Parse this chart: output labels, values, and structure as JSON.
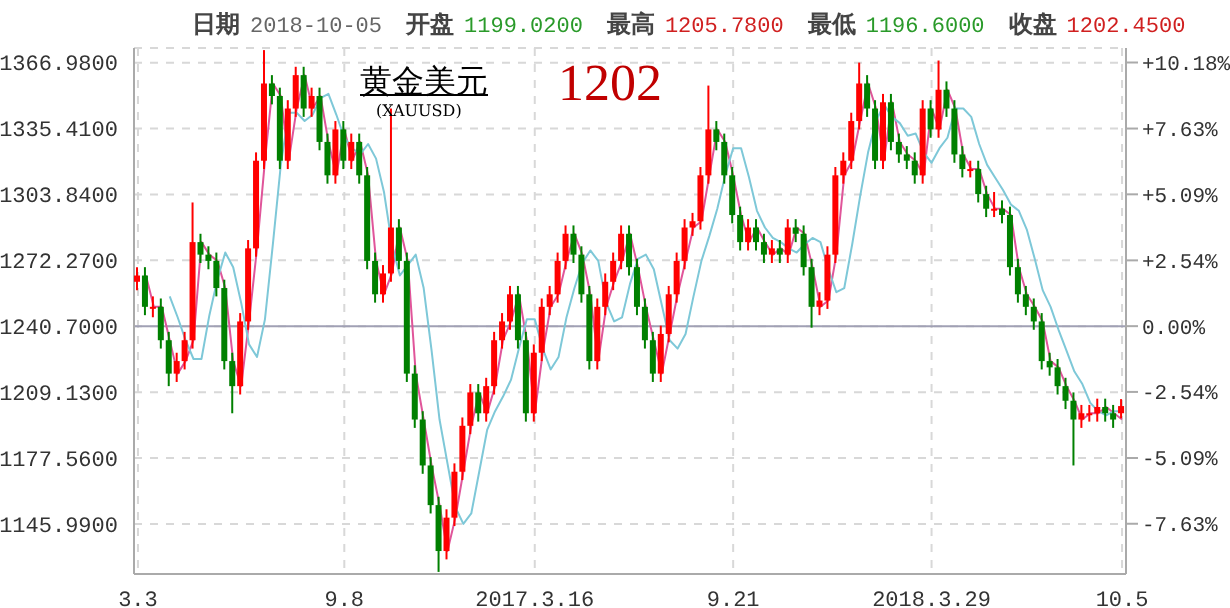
{
  "chart_data": {
    "type": "candlestick",
    "title": "日期 2018-10-05 开盘 1199.0200 最高 1205.7800 最低 1196.6000 收盘 1202.4500",
    "annotations": [
      "黄金美元",
      "(XAUUSD)",
      "1202"
    ],
    "categories": [
      "3.3",
      null,
      null,
      null,
      null,
      null,
      null,
      null,
      null,
      null,
      null,
      null,
      null,
      null,
      null,
      null,
      null,
      null,
      null,
      null,
      null,
      null,
      null,
      null,
      null,
      null,
      "9.8",
      null,
      null,
      null,
      null,
      null,
      null,
      null,
      null,
      null,
      null,
      null,
      null,
      null,
      null,
      null,
      null,
      null,
      null,
      null,
      null,
      null,
      null,
      null,
      "2017.3.16",
      null,
      null,
      null,
      null,
      null,
      null,
      null,
      null,
      null,
      null,
      null,
      null,
      null,
      null,
      null,
      null,
      null,
      null,
      null,
      null,
      null,
      null,
      null,
      null,
      "9.21",
      null,
      null,
      null,
      null,
      null,
      null,
      null,
      null,
      null,
      null,
      null,
      null,
      null,
      null,
      null,
      null,
      null,
      null,
      null,
      null,
      null,
      null,
      null,
      null,
      "2018.3.29",
      null,
      null,
      null,
      null,
      null,
      null,
      null,
      null,
      null,
      null,
      null,
      null,
      null,
      null,
      null,
      null,
      null,
      null,
      null,
      null,
      null,
      null,
      null,
      "10.5"
    ],
    "ohlc": [
      [
        1262,
        1269,
        1258,
        1265
      ],
      [
        1265,
        1269,
        1246,
        1250
      ],
      [
        1250,
        1255,
        1245,
        1250
      ],
      [
        1250,
        1254,
        1230,
        1234
      ],
      [
        1234,
        1238,
        1212,
        1218
      ],
      [
        1218,
        1228,
        1214,
        1224
      ],
      [
        1224,
        1238,
        1220,
        1234
      ],
      [
        1234,
        1300,
        1230,
        1281
      ],
      [
        1281,
        1285,
        1271,
        1275
      ],
      [
        1275,
        1279,
        1268,
        1272
      ],
      [
        1272,
        1276,
        1255,
        1259
      ],
      [
        1259,
        1263,
        1220,
        1224
      ],
      [
        1224,
        1228,
        1199,
        1212
      ],
      [
        1212,
        1247,
        1208,
        1243
      ],
      [
        1243,
        1282,
        1239,
        1278
      ],
      [
        1278,
        1324,
        1274,
        1320
      ],
      [
        1320,
        1373,
        1316,
        1357
      ],
      [
        1357,
        1361,
        1347,
        1351
      ],
      [
        1351,
        1355,
        1316,
        1320
      ],
      [
        1320,
        1349,
        1316,
        1345
      ],
      [
        1345,
        1365,
        1341,
        1361
      ],
      [
        1361,
        1365,
        1341,
        1345
      ],
      [
        1345,
        1355,
        1341,
        1351
      ],
      [
        1351,
        1355,
        1325,
        1329
      ],
      [
        1329,
        1333,
        1309,
        1313
      ],
      [
        1313,
        1339,
        1309,
        1335
      ],
      [
        1335,
        1339,
        1316,
        1320
      ],
      [
        1320,
        1333,
        1316,
        1329
      ],
      [
        1329,
        1333,
        1309,
        1313
      ],
      [
        1313,
        1317,
        1268,
        1272
      ],
      [
        1272,
        1276,
        1252,
        1256
      ],
      [
        1256,
        1270,
        1252,
        1266
      ],
      [
        1266,
        1345,
        1262,
        1288
      ],
      [
        1288,
        1292,
        1268,
        1272
      ],
      [
        1272,
        1276,
        1214,
        1218
      ],
      [
        1218,
        1222,
        1192,
        1196
      ],
      [
        1196,
        1200,
        1170,
        1174
      ],
      [
        1174,
        1178,
        1151,
        1155
      ],
      [
        1155,
        1159,
        1123,
        1133
      ],
      [
        1133,
        1153,
        1129,
        1149
      ],
      [
        1149,
        1175,
        1145,
        1171
      ],
      [
        1171,
        1197,
        1167,
        1193
      ],
      [
        1193,
        1213,
        1189,
        1209
      ],
      [
        1209,
        1213,
        1195,
        1199
      ],
      [
        1199,
        1216,
        1195,
        1212
      ],
      [
        1212,
        1238,
        1208,
        1234
      ],
      [
        1234,
        1247,
        1230,
        1243
      ],
      [
        1243,
        1260,
        1239,
        1256
      ],
      [
        1256,
        1260,
        1230,
        1234
      ],
      [
        1234,
        1238,
        1195,
        1199
      ],
      [
        1199,
        1232,
        1195,
        1228
      ],
      [
        1228,
        1254,
        1224,
        1250
      ],
      [
        1250,
        1260,
        1246,
        1256
      ],
      [
        1256,
        1276,
        1252,
        1272
      ],
      [
        1272,
        1289,
        1268,
        1285
      ],
      [
        1285,
        1289,
        1271,
        1275
      ],
      [
        1275,
        1279,
        1252,
        1256
      ],
      [
        1256,
        1260,
        1220,
        1224
      ],
      [
        1224,
        1254,
        1220,
        1250
      ],
      [
        1250,
        1266,
        1246,
        1262
      ],
      [
        1262,
        1276,
        1258,
        1272
      ],
      [
        1272,
        1289,
        1268,
        1285
      ],
      [
        1285,
        1289,
        1265,
        1269
      ],
      [
        1269,
        1273,
        1246,
        1250
      ],
      [
        1250,
        1254,
        1230,
        1234
      ],
      [
        1234,
        1238,
        1214,
        1218
      ],
      [
        1218,
        1241,
        1214,
        1237
      ],
      [
        1237,
        1260,
        1233,
        1256
      ],
      [
        1256,
        1276,
        1252,
        1272
      ],
      [
        1272,
        1292,
        1268,
        1288
      ],
      [
        1288,
        1295,
        1284,
        1291
      ],
      [
        1291,
        1317,
        1287,
        1313
      ],
      [
        1313,
        1356,
        1309,
        1335
      ],
      [
        1335,
        1339,
        1325,
        1329
      ],
      [
        1329,
        1333,
        1309,
        1313
      ],
      [
        1313,
        1317,
        1290,
        1294
      ],
      [
        1294,
        1298,
        1277,
        1281
      ],
      [
        1281,
        1292,
        1277,
        1288
      ],
      [
        1288,
        1292,
        1277,
        1281
      ],
      [
        1281,
        1285,
        1271,
        1275
      ],
      [
        1275,
        1282,
        1271,
        1278
      ],
      [
        1278,
        1282,
        1271,
        1275
      ],
      [
        1275,
        1292,
        1271,
        1288
      ],
      [
        1288,
        1292,
        1281,
        1285
      ],
      [
        1285,
        1289,
        1265,
        1269
      ],
      [
        1269,
        1273,
        1240,
        1250
      ],
      [
        1250,
        1257,
        1246,
        1253
      ],
      [
        1253,
        1279,
        1249,
        1275
      ],
      [
        1275,
        1317,
        1271,
        1313
      ],
      [
        1313,
        1324,
        1309,
        1320
      ],
      [
        1320,
        1343,
        1316,
        1339
      ],
      [
        1339,
        1367,
        1335,
        1357
      ],
      [
        1357,
        1361,
        1341,
        1345
      ],
      [
        1345,
        1349,
        1316,
        1320
      ],
      [
        1320,
        1352,
        1316,
        1348
      ],
      [
        1348,
        1352,
        1325,
        1329
      ],
      [
        1329,
        1333,
        1319,
        1323
      ],
      [
        1323,
        1327,
        1316,
        1320
      ],
      [
        1320,
        1324,
        1309,
        1313
      ],
      [
        1313,
        1349,
        1309,
        1345
      ],
      [
        1345,
        1349,
        1331,
        1335
      ],
      [
        1335,
        1368,
        1331,
        1354
      ],
      [
        1354,
        1358,
        1341,
        1345
      ],
      [
        1345,
        1349,
        1319,
        1323
      ],
      [
        1323,
        1327,
        1312,
        1316
      ],
      [
        1316,
        1320,
        1312,
        1316
      ],
      [
        1316,
        1320,
        1300,
        1304
      ],
      [
        1304,
        1308,
        1293,
        1297
      ],
      [
        1297,
        1305,
        1293,
        1297
      ],
      [
        1297,
        1301,
        1290,
        1294
      ],
      [
        1294,
        1298,
        1265,
        1269
      ],
      [
        1269,
        1273,
        1252,
        1256
      ],
      [
        1256,
        1260,
        1246,
        1250
      ],
      [
        1250,
        1254,
        1239,
        1243
      ],
      [
        1243,
        1247,
        1220,
        1224
      ],
      [
        1224,
        1228,
        1217,
        1221
      ],
      [
        1221,
        1225,
        1208,
        1212
      ],
      [
        1212,
        1216,
        1201,
        1205
      ],
      [
        1205,
        1209,
        1174,
        1196
      ],
      [
        1196,
        1203,
        1192,
        1199
      ],
      [
        1199,
        1203,
        1195,
        1199
      ],
      [
        1199,
        1206,
        1195,
        1202
      ],
      [
        1202,
        1206,
        1195,
        1199
      ],
      [
        1199,
        1203,
        1192,
        1196
      ],
      [
        1199.02,
        1205.78,
        1196.6,
        1202.45
      ]
    ],
    "colors": [
      "#ff0000",
      "#008000",
      "#ff0000",
      "#008000",
      "#008000",
      "#ff0000",
      "#ff0000",
      "#ff0000",
      "#008000",
      "#008000",
      "#008000",
      "#008000",
      "#008000",
      "#ff0000",
      "#ff0000",
      "#ff0000",
      "#ff0000",
      "#008000",
      "#008000",
      "#ff0000",
      "#ff0000",
      "#008000",
      "#ff0000",
      "#008000",
      "#008000",
      "#ff0000",
      "#008000",
      "#ff0000",
      "#008000",
      "#008000",
      "#008000",
      "#ff0000",
      "#ff0000",
      "#008000",
      "#008000",
      "#008000",
      "#008000",
      "#008000",
      "#008000",
      "#ff0000",
      "#ff0000",
      "#ff0000",
      "#ff0000",
      "#008000",
      "#ff0000",
      "#ff0000",
      "#ff0000",
      "#ff0000",
      "#008000",
      "#008000",
      "#ff0000",
      "#ff0000",
      "#ff0000",
      "#ff0000",
      "#ff0000",
      "#008000",
      "#008000",
      "#008000",
      "#ff0000",
      "#ff0000",
      "#ff0000",
      "#ff0000",
      "#008000",
      "#008000",
      "#008000",
      "#008000",
      "#ff0000",
      "#ff0000",
      "#ff0000",
      "#ff0000",
      "#ff0000",
      "#ff0000",
      "#ff0000",
      "#008000",
      "#008000",
      "#008000",
      "#008000",
      "#ff0000",
      "#008000",
      "#008000",
      "#ff0000",
      "#008000",
      "#ff0000",
      "#008000",
      "#008000",
      "#008000",
      "#ff0000",
      "#ff0000",
      "#ff0000",
      "#ff0000",
      "#ff0000",
      "#ff0000",
      "#008000",
      "#008000",
      "#ff0000",
      "#008000",
      "#008000",
      "#008000",
      "#008000",
      "#ff0000",
      "#008000",
      "#ff0000",
      "#008000",
      "#008000",
      "#008000",
      "#ff0000",
      "#008000",
      "#008000",
      "#ff0000",
      "#008000",
      "#008000",
      "#008000",
      "#008000",
      "#008000",
      "#008000",
      "#008000",
      "#008000",
      "#008000",
      "#008000",
      "#ff0000",
      "#ff0000",
      "#ff0000",
      "#008000",
      "#008000",
      "#ff0000"
    ],
    "series": [
      {
        "type": "line",
        "color": "#e0559a",
        "values": [
          null,
          1265,
          1250,
          1250,
          1234,
          1218,
          1224,
          1234,
          1281,
          1275,
          1272,
          1259,
          1224,
          1212,
          1243,
          1278,
          1320,
          1357,
          1351,
          1320,
          1345,
          1361,
          1345,
          1351,
          1329,
          1313,
          1335,
          1320,
          1329,
          1313,
          1272,
          1256,
          1266,
          1288,
          1272,
          1218,
          1196,
          1174,
          1155,
          1133,
          1149,
          1171,
          1193,
          1209,
          1199,
          1212,
          1234,
          1243,
          1256,
          1234,
          1199,
          1228,
          1250,
          1256,
          1272,
          1285,
          1275,
          1256,
          1224,
          1250,
          1262,
          1272,
          1285,
          1269,
          1250,
          1234,
          1218,
          1237,
          1256,
          1272,
          1288,
          1291,
          1313,
          1335,
          1329,
          1313,
          1294,
          1281,
          1288,
          1281,
          1275,
          1278,
          1275,
          1288,
          1285,
          1269,
          1250,
          1253,
          1275,
          1313,
          1320,
          1339,
          1357,
          1345,
          1320,
          1348,
          1329,
          1323,
          1320,
          1313,
          1345,
          1335,
          1354,
          1345,
          1323,
          1316,
          1316,
          1304,
          1297,
          1297,
          1294,
          1269,
          1256,
          1250,
          1243,
          1224,
          1221,
          1212,
          1205,
          1196,
          1199,
          1199,
          1202,
          1199,
          1196
        ]
      },
      {
        "type": "line",
        "color": "#7ec8d8",
        "values": [
          null,
          null,
          null,
          null,
          1255,
          1245,
          1234,
          1225,
          1225,
          1246,
          1263,
          1276,
          1269,
          1252,
          1232,
          1226,
          1244,
          1280,
          1318,
          1343,
          1343,
          1339,
          1342,
          1350,
          1352,
          1342,
          1331,
          1326,
          1323,
          1328,
          1321,
          1305,
          1280,
          1265,
          1270,
          1275,
          1259,
          1229,
          1196,
          1175,
          1154,
          1146,
          1151,
          1171,
          1191,
          1200,
          1207,
          1215,
          1230,
          1244,
          1244,
          1230,
          1220,
          1226,
          1245,
          1259,
          1271,
          1277,
          1272,
          1252,
          1243,
          1245,
          1261,
          1273,
          1275,
          1268,
          1251,
          1234,
          1230,
          1237,
          1255,
          1272,
          1284,
          1297,
          1313,
          1326,
          1326,
          1312,
          1296,
          1288,
          1283,
          1281,
          1278,
          1276,
          1280,
          1283,
          1281,
          1268,
          1257,
          1259,
          1280,
          1303,
          1324,
          1339,
          1347,
          1341,
          1338,
          1332,
          1333,
          1324,
          1319,
          1326,
          1331,
          1345,
          1345,
          1341,
          1328,
          1318,
          1312,
          1306,
          1299,
          1296,
          1287,
          1273,
          1258,
          1250,
          1239,
          1229,
          1219,
          1213,
          1204,
          1200,
          1198,
          1200,
          1200
        ]
      }
    ],
    "ylim": [
      1122,
      1374
    ],
    "yticks": [
      {
        "value": 1145.99,
        "label": "1145.9900"
      },
      {
        "value": 1177.56,
        "label": "1177.5600"
      },
      {
        "value": 1209.13,
        "label": "1209.1300"
      },
      {
        "value": 1240.7,
        "label": "1240.7000"
      },
      {
        "value": 1272.27,
        "label": "1272.2700"
      },
      {
        "value": 1303.84,
        "label": "1303.8400"
      },
      {
        "value": 1335.41,
        "label": "1335.4100"
      },
      {
        "value": 1366.98,
        "label": "1366.9800"
      }
    ],
    "y2lim": [
      -9.57,
      10.74
    ],
    "y2ticks": [
      {
        "value": -7.63,
        "label": "-7.63%"
      },
      {
        "value": -5.09,
        "label": "-5.09%"
      },
      {
        "value": -2.54,
        "label": "-2.54%"
      },
      {
        "value": 0,
        "label": "0.00%"
      },
      {
        "value": 2.54,
        "label": "+2.54%"
      },
      {
        "value": 5.09,
        "label": "+5.09%"
      },
      {
        "value": 7.63,
        "label": "+7.63%"
      },
      {
        "value": 10.18,
        "label": "+10.18%"
      }
    ],
    "ref_lines": [
      {
        "axis": "y",
        "value": 1240.7,
        "color": "#a0a0b4"
      }
    ],
    "grid": true
  }
}
